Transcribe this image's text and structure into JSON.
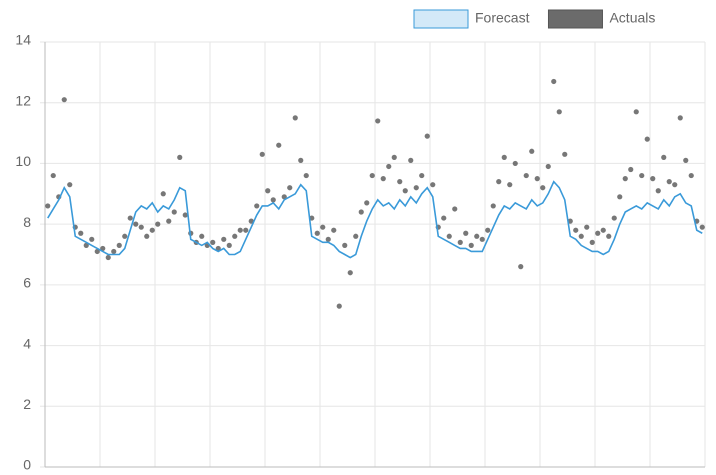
{
  "chart_data": {
    "type": "line",
    "categories": [
      null,
      null,
      null,
      null,
      null,
      null,
      null,
      null,
      null,
      null,
      null,
      null,
      null,
      null,
      null,
      null,
      null,
      null,
      null,
      null,
      null,
      null,
      null,
      null,
      null,
      null,
      null,
      null,
      null,
      null,
      null,
      null,
      null,
      null,
      null,
      null,
      null,
      null,
      null,
      null,
      null,
      null,
      null,
      null,
      null,
      null,
      null,
      null,
      null,
      null,
      null,
      null,
      null,
      null,
      null,
      null,
      null,
      null,
      null,
      null,
      null,
      null,
      null,
      null,
      null,
      null,
      null,
      null,
      null,
      null,
      null,
      null,
      null,
      null,
      null,
      null,
      null,
      null,
      null,
      null,
      null,
      null,
      null,
      null,
      null,
      null,
      null,
      null,
      null,
      null,
      null,
      null,
      null,
      null,
      null,
      null,
      null,
      null,
      null,
      null,
      null,
      null,
      null,
      null,
      null,
      null,
      null,
      null,
      null,
      null,
      null,
      null,
      null,
      null,
      null,
      null,
      null,
      null,
      null,
      null
    ],
    "series": [
      {
        "name": "Forecast",
        "type": "line",
        "color": "#3a9ad9",
        "legend_fill": "#d3e9f8",
        "values": [
          8.2,
          8.5,
          8.8,
          9.2,
          8.9,
          7.6,
          7.5,
          7.4,
          7.3,
          7.2,
          7.1,
          7.0,
          7.0,
          7.0,
          7.2,
          7.8,
          8.4,
          8.6,
          8.5,
          8.7,
          8.4,
          8.6,
          8.5,
          8.8,
          9.2,
          9.1,
          7.5,
          7.4,
          7.3,
          7.4,
          7.2,
          7.1,
          7.2,
          7.0,
          7.0,
          7.1,
          7.5,
          7.9,
          8.3,
          8.6,
          8.6,
          8.7,
          8.5,
          8.8,
          8.9,
          9.0,
          9.3,
          9.1,
          7.6,
          7.5,
          7.4,
          7.4,
          7.3,
          7.1,
          7.0,
          6.9,
          7.0,
          7.6,
          8.1,
          8.5,
          8.8,
          8.6,
          8.7,
          8.5,
          8.8,
          8.6,
          8.9,
          8.7,
          9.0,
          9.2,
          8.9,
          7.6,
          7.5,
          7.4,
          7.3,
          7.2,
          7.2,
          7.1,
          7.1,
          7.1,
          7.5,
          7.9,
          8.3,
          8.6,
          8.5,
          8.7,
          8.6,
          8.5,
          8.8,
          8.6,
          8.7,
          9.0,
          9.4,
          9.2,
          8.8,
          7.6,
          7.5,
          7.3,
          7.2,
          7.1,
          7.1,
          7.0,
          7.1,
          7.5,
          8.0,
          8.4,
          8.5,
          8.6,
          8.5,
          8.7,
          8.6,
          8.5,
          8.8,
          8.6,
          8.9,
          9.0,
          8.7,
          8.6,
          7.8,
          7.7
        ]
      },
      {
        "name": "Actuals",
        "type": "scatter",
        "color": "#555555",
        "legend_fill": "#6b6b6b",
        "values": [
          8.6,
          9.6,
          8.9,
          12.1,
          9.3,
          7.9,
          7.7,
          7.3,
          7.5,
          7.1,
          7.2,
          6.9,
          7.1,
          7.3,
          7.6,
          8.2,
          8.0,
          7.9,
          7.6,
          7.8,
          8.0,
          9.0,
          8.1,
          8.4,
          10.2,
          8.3,
          7.7,
          7.4,
          7.6,
          7.3,
          7.4,
          7.2,
          7.5,
          7.3,
          7.6,
          7.8,
          7.8,
          8.1,
          8.6,
          10.3,
          9.1,
          8.8,
          10.6,
          8.9,
          9.2,
          11.5,
          10.1,
          9.6,
          8.2,
          7.7,
          7.9,
          7.5,
          7.8,
          5.3,
          7.3,
          6.4,
          7.6,
          8.4,
          8.7,
          9.6,
          11.4,
          9.5,
          9.9,
          10.2,
          9.4,
          9.1,
          10.1,
          9.2,
          9.6,
          10.9,
          9.3,
          7.9,
          8.2,
          7.6,
          8.5,
          7.4,
          7.7,
          7.3,
          7.6,
          7.5,
          7.8,
          8.6,
          9.4,
          10.2,
          9.3,
          10.0,
          6.6,
          9.6,
          10.4,
          9.5,
          9.2,
          9.9,
          12.7,
          11.7,
          10.3,
          8.1,
          7.8,
          7.6,
          7.9,
          7.4,
          7.7,
          7.8,
          7.6,
          8.2,
          8.9,
          9.5,
          9.8,
          11.7,
          9.6,
          10.8,
          9.5,
          9.1,
          10.2,
          9.4,
          9.3,
          11.5,
          10.1,
          9.6,
          8.1,
          7.9
        ]
      }
    ],
    "ylim": [
      0,
      14
    ],
    "yticks": [
      0,
      2,
      4,
      6,
      8,
      10,
      12,
      14
    ],
    "grid": true,
    "legend": "top-right"
  }
}
